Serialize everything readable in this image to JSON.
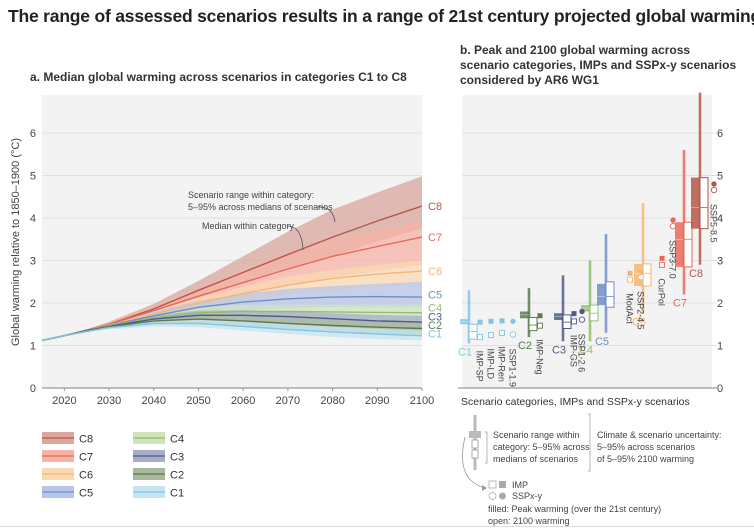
{
  "title": "The range of assessed scenarios results in a range of 21st century projected global warming.",
  "chart_data": [
    {
      "type": "area",
      "panel": "a",
      "title": "a. Median global warming across scenarios in categories C1 to C8",
      "xlabel": "",
      "ylabel": "Global warming relative to 1850–1900 (°C)",
      "xlim": [
        2015,
        2100
      ],
      "ylim": [
        0,
        7
      ],
      "xticks": [
        2020,
        2030,
        2040,
        2050,
        2060,
        2070,
        2080,
        2090,
        2100
      ],
      "yticks": [
        0,
        1,
        2,
        3,
        4,
        5,
        6
      ],
      "grid": true,
      "x": [
        2015,
        2020,
        2025,
        2030,
        2040,
        2050,
        2060,
        2070,
        2080,
        2090,
        2100
      ],
      "series": [
        {
          "name": "C8",
          "color": "#b5574a",
          "fill": "#d9a79c",
          "median": [
            1.12,
            1.23,
            1.36,
            1.5,
            1.86,
            2.3,
            2.72,
            3.14,
            3.55,
            3.93,
            4.28
          ],
          "low": [
            1.12,
            1.22,
            1.34,
            1.46,
            1.78,
            2.14,
            2.46,
            2.8,
            3.1,
            3.45,
            3.75
          ],
          "high": [
            1.12,
            1.24,
            1.38,
            1.56,
            1.98,
            2.52,
            3.1,
            3.68,
            4.2,
            4.6,
            4.98
          ]
        },
        {
          "name": "C7",
          "color": "#e8685a",
          "fill": "#f5b3a6",
          "median": [
            1.12,
            1.23,
            1.36,
            1.5,
            1.82,
            2.16,
            2.48,
            2.8,
            3.1,
            3.33,
            3.55
          ],
          "low": [
            1.12,
            1.22,
            1.34,
            1.45,
            1.72,
            1.98,
            2.2,
            2.4,
            2.6,
            2.75,
            2.9
          ],
          "high": [
            1.12,
            1.24,
            1.38,
            1.55,
            1.92,
            2.35,
            2.78,
            3.2,
            3.5,
            3.72,
            3.92
          ]
        },
        {
          "name": "C6",
          "color": "#f4b675",
          "fill": "#fbd8b3",
          "median": [
            1.12,
            1.23,
            1.35,
            1.48,
            1.74,
            2.0,
            2.22,
            2.42,
            2.58,
            2.68,
            2.75
          ],
          "low": [
            1.12,
            1.22,
            1.33,
            1.43,
            1.65,
            1.86,
            2.04,
            2.2,
            2.3,
            2.38,
            2.45
          ],
          "high": [
            1.12,
            1.24,
            1.37,
            1.52,
            1.82,
            2.12,
            2.38,
            2.62,
            2.78,
            2.9,
            3.0
          ]
        },
        {
          "name": "C5",
          "color": "#6e8ec8",
          "fill": "#b7c6e6",
          "median": [
            1.12,
            1.23,
            1.35,
            1.47,
            1.7,
            1.9,
            2.02,
            2.1,
            2.14,
            2.15,
            2.14
          ],
          "low": [
            1.12,
            1.22,
            1.33,
            1.42,
            1.6,
            1.74,
            1.82,
            1.87,
            1.9,
            1.9,
            1.9
          ],
          "high": [
            1.12,
            1.24,
            1.37,
            1.52,
            1.8,
            2.05,
            2.22,
            2.33,
            2.4,
            2.45,
            2.5
          ]
        },
        {
          "name": "C4",
          "color": "#8fbf6a",
          "fill": "#cfe3bd",
          "median": [
            1.12,
            1.23,
            1.35,
            1.46,
            1.65,
            1.77,
            1.8,
            1.8,
            1.79,
            1.78,
            1.77
          ],
          "low": [
            1.12,
            1.22,
            1.33,
            1.42,
            1.56,
            1.64,
            1.65,
            1.64,
            1.62,
            1.6,
            1.58
          ],
          "high": [
            1.12,
            1.24,
            1.37,
            1.5,
            1.74,
            1.9,
            1.95,
            1.96,
            1.96,
            1.96,
            1.96
          ]
        },
        {
          "name": "C3",
          "color": "#4f5a8a",
          "fill": "#a7aec9",
          "median": [
            1.12,
            1.23,
            1.35,
            1.45,
            1.62,
            1.71,
            1.71,
            1.68,
            1.63,
            1.58,
            1.55
          ],
          "low": [
            1.12,
            1.22,
            1.33,
            1.41,
            1.54,
            1.6,
            1.58,
            1.54,
            1.48,
            1.43,
            1.4
          ],
          "high": [
            1.12,
            1.24,
            1.37,
            1.49,
            1.7,
            1.82,
            1.83,
            1.8,
            1.76,
            1.72,
            1.7
          ]
        },
        {
          "name": "C2",
          "color": "#5c7a4e",
          "fill": "#a9b99f",
          "median": [
            1.12,
            1.23,
            1.34,
            1.44,
            1.58,
            1.62,
            1.58,
            1.52,
            1.47,
            1.43,
            1.4
          ],
          "low": [
            1.12,
            1.22,
            1.32,
            1.4,
            1.5,
            1.5,
            1.44,
            1.37,
            1.31,
            1.27,
            1.24
          ],
          "high": [
            1.12,
            1.24,
            1.36,
            1.48,
            1.66,
            1.74,
            1.72,
            1.68,
            1.63,
            1.58,
            1.55
          ]
        },
        {
          "name": "C1",
          "color": "#7fc6e4",
          "fill": "#c4e4f2",
          "median": [
            1.12,
            1.23,
            1.33,
            1.42,
            1.52,
            1.52,
            1.45,
            1.38,
            1.32,
            1.27,
            1.23
          ],
          "low": [
            1.12,
            1.22,
            1.31,
            1.38,
            1.45,
            1.43,
            1.35,
            1.27,
            1.2,
            1.15,
            1.12
          ],
          "high": [
            1.12,
            1.24,
            1.35,
            1.46,
            1.6,
            1.62,
            1.57,
            1.5,
            1.44,
            1.39,
            1.35
          ]
        }
      ],
      "annotations": [
        {
          "text": "Scenario range within category:",
          "text2": "5–95% across medians of scenarios"
        },
        {
          "text": "Median within category"
        }
      ],
      "legend": {
        "placement": "bottom-left",
        "columns": [
          [
            "C8",
            "C7",
            "C6",
            "C5"
          ],
          [
            "C4",
            "C3",
            "C2",
            "C1"
          ]
        ]
      }
    },
    {
      "type": "box",
      "panel": "b",
      "title": "b. Peak and 2100 global warming across scenario categories, IMPs and SSPx-y scenarios considered by AR6 WG1",
      "xlabel": "Scenario categories, IMPs and SSPx-y scenarios",
      "ylabel": "",
      "ylim": [
        0,
        7
      ],
      "yticks": [
        0,
        1,
        2,
        3,
        4,
        5,
        6
      ],
      "yaxis_side": "right",
      "grid": true,
      "categories": [
        {
          "name": "C1",
          "color": "#7fc6e4",
          "whisker": [
            1.05,
            2.3
          ],
          "peak_box": [
            1.5,
            1.62
          ],
          "end_box": [
            1.15,
            1.5
          ],
          "median_peak": 1.56,
          "median_end": 1.33
        },
        {
          "name": "C2",
          "color": "#5c7a4e",
          "whisker": [
            1.2,
            2.35
          ],
          "peak_box": [
            1.64,
            1.8
          ],
          "end_box": [
            1.35,
            1.66
          ],
          "median_peak": 1.72,
          "median_end": 1.48
        },
        {
          "name": "C3",
          "color": "#4f5a8a",
          "whisker": [
            1.1,
            2.65
          ],
          "peak_box": [
            1.6,
            1.76
          ],
          "end_box": [
            1.4,
            1.72
          ],
          "median_peak": 1.68,
          "median_end": 1.55
        },
        {
          "name": "C4",
          "color": "#8fbf6a",
          "whisker": [
            1.1,
            3.0
          ],
          "peak_box": [
            1.8,
            1.95
          ],
          "end_box": [
            1.58,
            1.95
          ],
          "median_peak": 1.88,
          "median_end": 1.76
        },
        {
          "name": "C5",
          "color": "#6e8ec8",
          "whisker": [
            1.3,
            3.62
          ],
          "peak_box": [
            1.95,
            2.45
          ],
          "end_box": [
            1.9,
            2.5
          ],
          "median_peak": 2.15,
          "median_end": 2.15
        },
        {
          "name": "C6",
          "color": "#f4b675",
          "whisker": [
            1.75,
            4.35
          ],
          "peak_box": [
            2.4,
            2.92
          ],
          "end_box": [
            2.4,
            2.92
          ],
          "median_peak": 2.7,
          "median_end": 2.7
        },
        {
          "name": "C7",
          "color": "#e8685a",
          "whisker": [
            2.2,
            5.6
          ],
          "peak_box": [
            2.85,
            3.9
          ],
          "end_box": [
            2.85,
            3.9
          ],
          "median_peak": 3.5,
          "median_end": 3.5
        },
        {
          "name": "C8",
          "color": "#b5574a",
          "whisker": [
            2.9,
            6.95
          ],
          "peak_box": [
            3.75,
            4.95
          ],
          "end_box": [
            3.75,
            4.95
          ],
          "median_peak": 4.25,
          "median_end": 4.25
        }
      ],
      "markers": [
        {
          "name": "IMP-SP",
          "kind": "IMP",
          "color": "#7fc6e4",
          "peak": 1.55,
          "end": 1.35
        },
        {
          "name": "IMP-LD",
          "kind": "IMP",
          "color": "#7fc6e4",
          "peak": 1.57,
          "end": 1.4
        },
        {
          "name": "IMP-Ren",
          "kind": "IMP",
          "color": "#7fc6e4",
          "peak": 1.58,
          "end": 1.45
        },
        {
          "name": "SSP1-1.9",
          "kind": "SSPx-y",
          "color": "#7fc6e4",
          "peak": 1.57,
          "end": 1.4
        },
        {
          "name": "IMP-Neg",
          "kind": "IMP",
          "color": "#5c7a4e",
          "peak": 1.7,
          "end": 1.62
        },
        {
          "name": "IMP-GS",
          "kind": "IMP",
          "color": "#4f5a8a",
          "peak": 1.75,
          "end": 1.72
        },
        {
          "name": "SSP1-2.6",
          "kind": "SSPx-y",
          "color": "#4f5a8a",
          "peak": 1.8,
          "end": 1.75
        },
        {
          "name": "ModAct",
          "kind": "IMP",
          "color": "#f4b675",
          "peak": 2.7,
          "end": 2.7
        },
        {
          "name": "SSP2-4.5",
          "kind": "SSPx-y",
          "color": "#f4b675",
          "peak": 2.75,
          "end": 2.75
        },
        {
          "name": "CurPol",
          "kind": "IMP",
          "color": "#e8685a",
          "peak": 3.05,
          "end": 3.05
        },
        {
          "name": "SSP3-7.0",
          "kind": "SSPx-y",
          "color": "#e8685a",
          "peak": 3.95,
          "end": 3.95
        },
        {
          "name": "SSP5-8.5",
          "kind": "SSPx-y",
          "color": "#b5574a",
          "peak": 4.8,
          "end": 4.8
        }
      ],
      "key": {
        "range_text": [
          "Scenario range within",
          "category: 5–95% across",
          "medians of scenarios"
        ],
        "uncertainty_text": [
          "Climate & scenario uncertainty:",
          "5–95% across scenarios",
          "of 5–95% 2100 warming"
        ],
        "imp_label": "IMP",
        "ssp_label": "SSPx-y",
        "filled_note": "filled: Peak warming (over the 21st century)",
        "open_note": "open: 2100 warming"
      }
    }
  ]
}
